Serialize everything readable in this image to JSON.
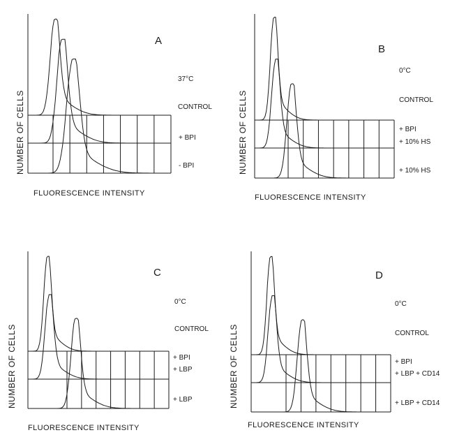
{
  "chart_data": [
    {
      "type": "histogram",
      "panel_letter": "A",
      "ylabel": "NUMBER OF CELLS",
      "xlabel": "FLUORESCENCE  INTENSITY",
      "temperature": "37°C",
      "traces": [
        {
          "label": "CONTROL",
          "peak_channel": 0.75,
          "peak_height": 0.95,
          "width": 0.45
        },
        {
          "label": "+ BPI",
          "peak_channel": 0.95,
          "peak_height": 0.85,
          "width": 0.5
        },
        {
          "label": "- BPI",
          "peak_channel": 1.25,
          "peak_height": 0.75,
          "width": 0.6
        }
      ],
      "grid_columns": 7
    },
    {
      "type": "histogram",
      "panel_letter": "B",
      "ylabel": "NUMBER OF CELLS",
      "xlabel": "FLUORESCENCE  INTENSITY",
      "temperature": "0°C",
      "traces": [
        {
          "label": "CONTROL",
          "peak_channel": 0.55,
          "peak_height": 0.97,
          "width": 0.35
        },
        {
          "label": "+ BPI\n+ 10% HS",
          "peak_channel": 0.6,
          "peak_height": 0.7,
          "width": 0.4
        },
        {
          "label": "+ 10% HS",
          "peak_channel": 1.05,
          "peak_height": 0.6,
          "width": 0.45
        }
      ],
      "grid_columns": 7
    },
    {
      "type": "histogram",
      "panel_letter": "C",
      "ylabel": "NUMBER OF CELLS",
      "xlabel": "FLUORESCENCE  INTENSITY",
      "temperature": "0°C",
      "traces": [
        {
          "label": "CONTROL",
          "peak_channel": 0.55,
          "peak_height": 0.95,
          "width": 0.35
        },
        {
          "label": "+ BPI\n+ LBP",
          "peak_channel": 0.6,
          "peak_height": 0.7,
          "width": 0.4
        },
        {
          "label": "+ LBP",
          "peak_channel": 1.35,
          "peak_height": 0.6,
          "width": 0.45
        }
      ],
      "grid_columns": 7
    },
    {
      "type": "histogram",
      "panel_letter": "D",
      "ylabel": "NUMBER OF CELLS",
      "xlabel": "FLUORESCENCE  INTENSITY",
      "temperature": "0°C",
      "traces": [
        {
          "label": "CONTROL",
          "peak_channel": 0.55,
          "peak_height": 0.95,
          "width": 0.35
        },
        {
          "label": "+ BPI\n+ LBP + CD14",
          "peak_channel": 0.6,
          "peak_height": 0.7,
          "width": 0.4
        },
        {
          "label": "+ LBP + CD14",
          "peak_channel": 1.45,
          "peak_height": 0.6,
          "width": 0.45
        }
      ],
      "grid_columns": 7
    }
  ],
  "labels": {
    "A": {
      "letter": "A",
      "temp": "37°C",
      "control": "CONTROL",
      "c2": "+ BPI",
      "c3": "- BPI"
    },
    "B": {
      "letter": "B",
      "temp": "0°C",
      "control": "CONTROL",
      "c2a": "+ BPI",
      "c2b": "+ 10% HS",
      "c3": "+ 10% HS"
    },
    "C": {
      "letter": "C",
      "temp": "0°C",
      "control": "CONTROL",
      "c2a": "+ BPI",
      "c2b": "+ LBP",
      "c3": "+ LBP"
    },
    "D": {
      "letter": "D",
      "temp": "0°C",
      "control": "CONTROL",
      "c2a": "+ BPI",
      "c2b": "+ LBP + CD14",
      "c3": "+ LBP + CD14"
    },
    "ylabel": "NUMBER OF CELLS",
    "xlabel": "FLUORESCENCE  INTENSITY"
  }
}
